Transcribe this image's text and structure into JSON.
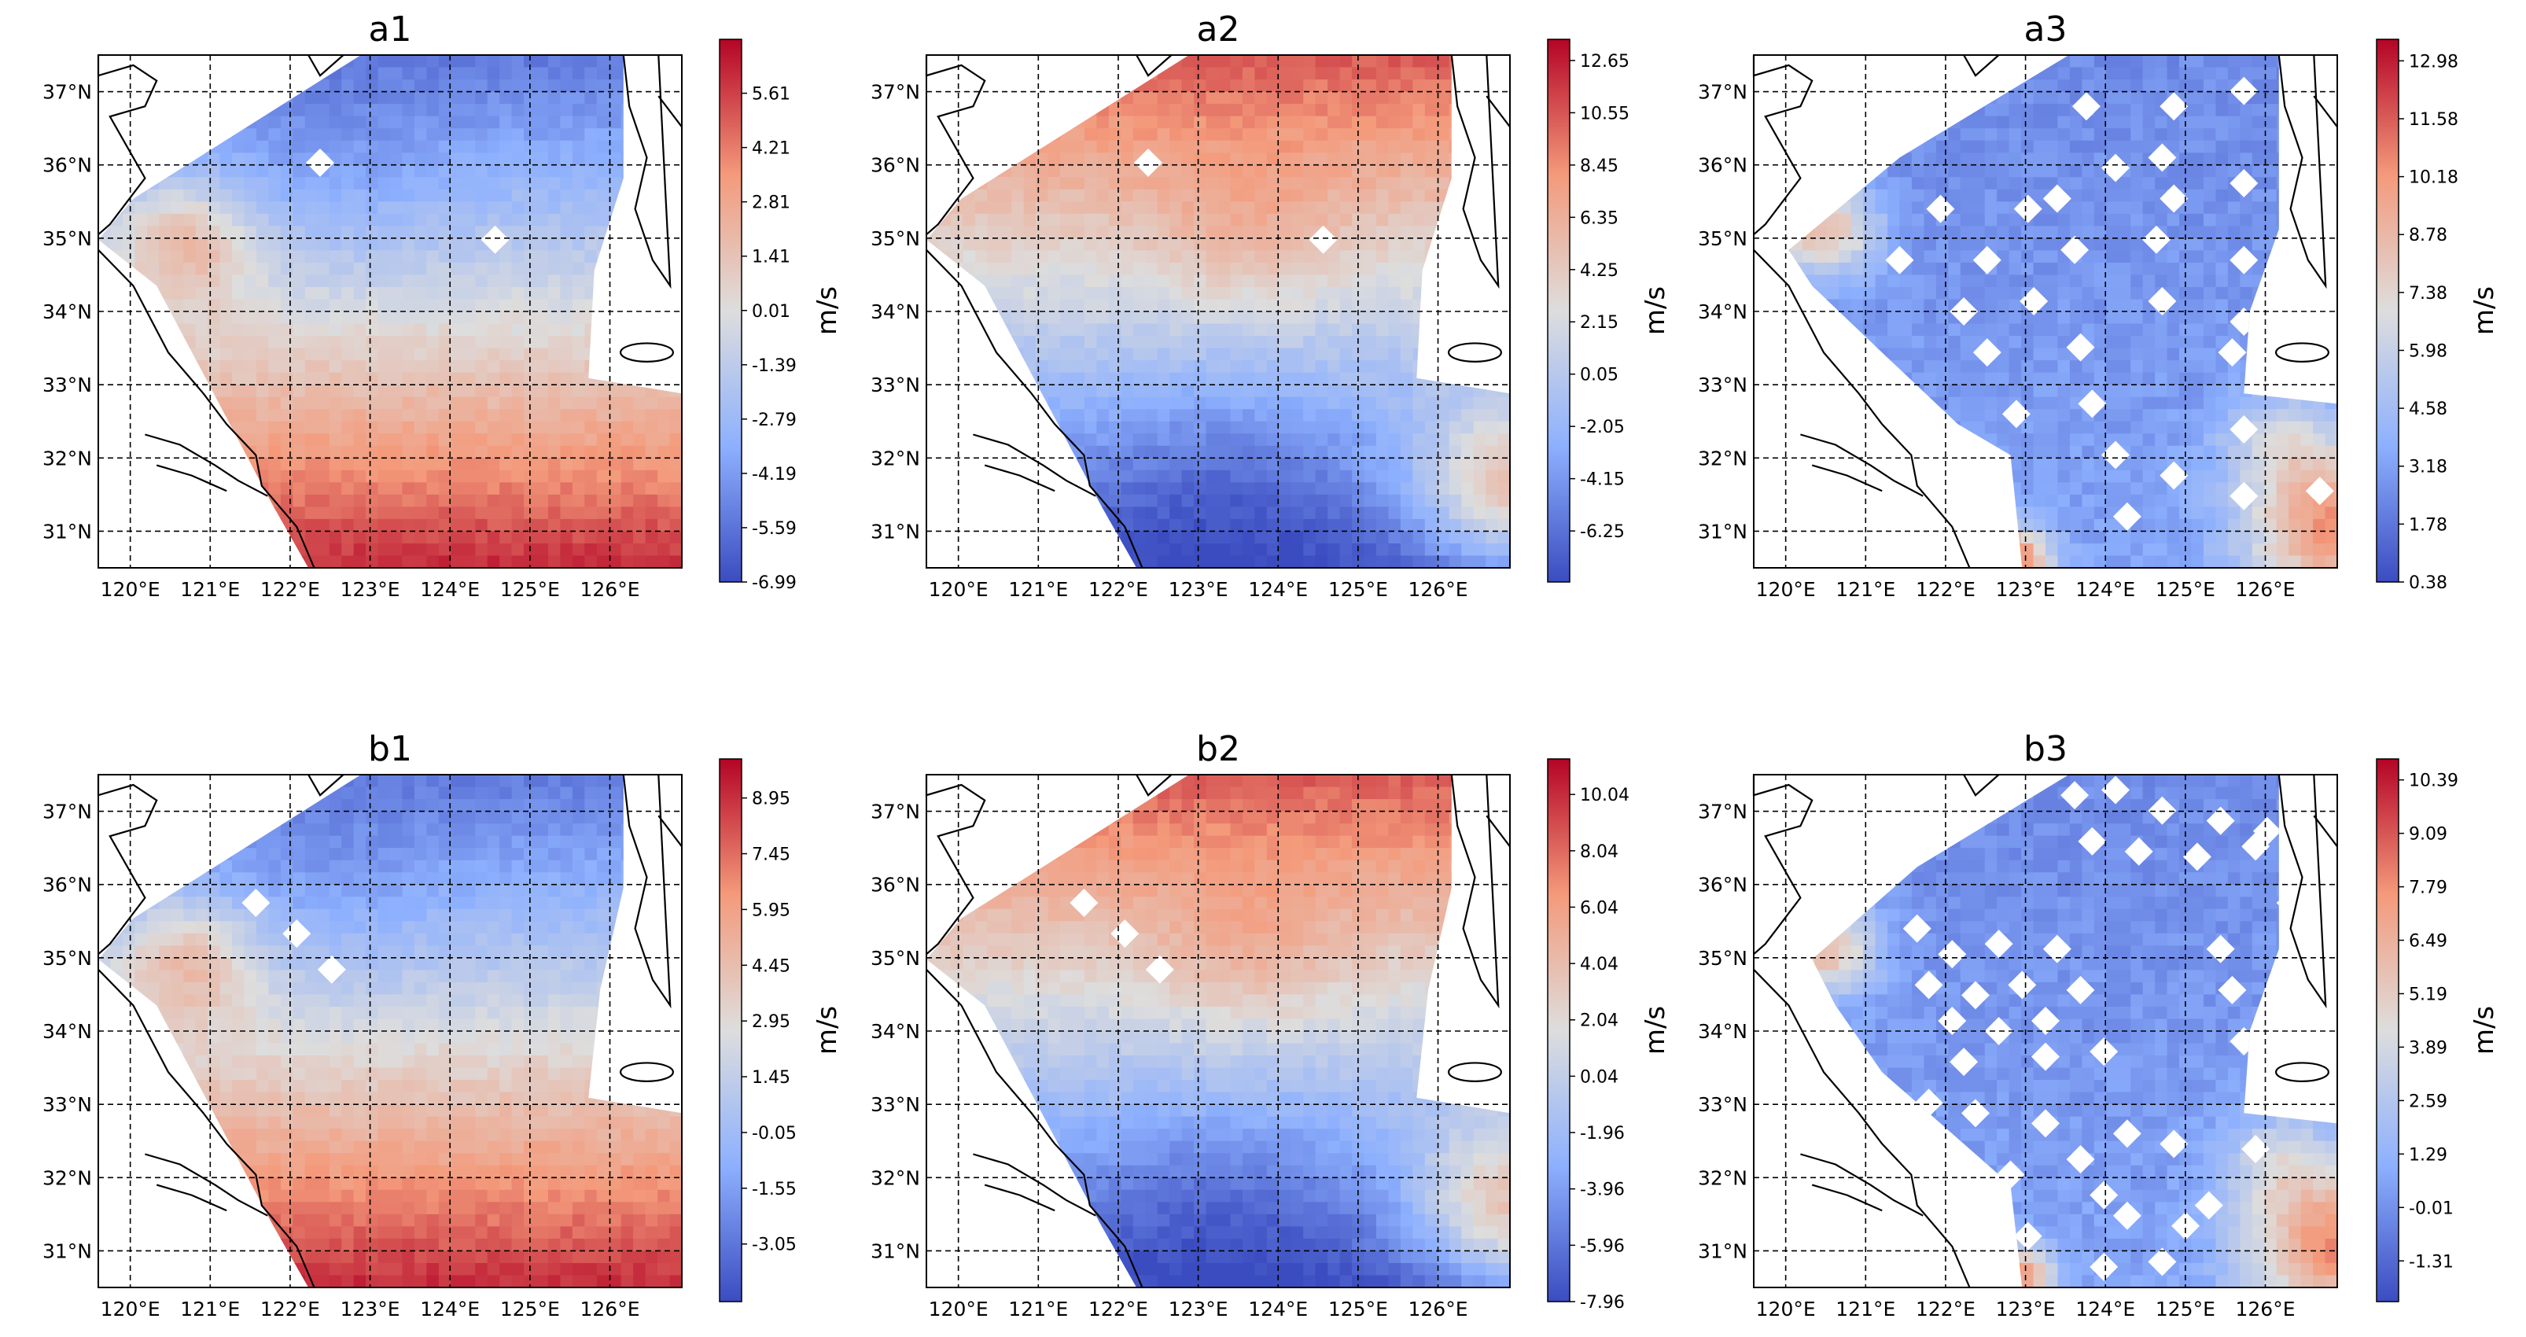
{
  "figure": {
    "note": "Six map panels of the Yellow Sea / East China Sea region showing wind-speed fields (m/s) with coolwarm colormap"
  },
  "colors": {
    "cold": "#3b4cc0",
    "mid": "#dddddd",
    "hot": "#b40426",
    "land": "#ffffff",
    "coast": "#000000"
  },
  "chart_data": [
    {
      "type": "heatmap",
      "id": "a1",
      "title": "a1",
      "xlabel": "",
      "ylabel": "",
      "x_ticks": [
        "120°E",
        "121°E",
        "122°E",
        "123°E",
        "124°E",
        "125°E",
        "126°E"
      ],
      "y_ticks": [
        "37°N",
        "36°N",
        "35°N",
        "34°N",
        "33°N",
        "32°N",
        "31°N"
      ],
      "xlim": [
        119.6,
        126.9
      ],
      "ylim": [
        30.5,
        37.5
      ],
      "colorbar": {
        "unit": "m/s",
        "ticks": [
          "5.61",
          "4.21",
          "2.81",
          "1.41",
          "0.01",
          "-1.39",
          "-2.79",
          "-4.19",
          "-5.59",
          "-6.99"
        ],
        "min": -6.99,
        "max": 7.0
      },
      "field_pattern": "north-negative-south-positive",
      "mask": "a"
    },
    {
      "type": "heatmap",
      "id": "a2",
      "title": "a2",
      "xlabel": "",
      "ylabel": "",
      "x_ticks": [
        "120°E",
        "121°E",
        "122°E",
        "123°E",
        "124°E",
        "125°E",
        "126°E"
      ],
      "y_ticks": [
        "37°N",
        "36°N",
        "35°N",
        "34°N",
        "33°N",
        "32°N",
        "31°N"
      ],
      "xlim": [
        119.6,
        126.9
      ],
      "ylim": [
        30.5,
        37.5
      ],
      "colorbar": {
        "unit": "m/s",
        "ticks": [
          "12.65",
          "10.55",
          "8.45",
          "6.35",
          "4.25",
          "2.15",
          "0.05",
          "-2.05",
          "-4.15",
          "-6.25"
        ],
        "min": -8.3,
        "max": 13.5
      },
      "field_pattern": "north-positive-south-negative",
      "mask": "a"
    },
    {
      "type": "heatmap",
      "id": "a3",
      "title": "a3",
      "xlabel": "",
      "ylabel": "",
      "x_ticks": [
        "120°E",
        "121°E",
        "122°E",
        "123°E",
        "124°E",
        "125°E",
        "126°E"
      ],
      "y_ticks": [
        "37°N",
        "36°N",
        "35°N",
        "34°N",
        "33°N",
        "32°N",
        "31°N"
      ],
      "xlim": [
        119.6,
        126.9
      ],
      "ylim": [
        30.5,
        37.5
      ],
      "colorbar": {
        "unit": "m/s",
        "ticks": [
          "12.98",
          "11.58",
          "10.18",
          "8.78",
          "7.38",
          "5.98",
          "4.58",
          "3.18",
          "1.78",
          "0.38"
        ],
        "min": 0.38,
        "max": 13.5
      },
      "field_pattern": "mostly-low-blue",
      "mask": "a3"
    },
    {
      "type": "heatmap",
      "id": "b1",
      "title": "b1",
      "xlabel": "",
      "ylabel": "",
      "x_ticks": [
        "120°E",
        "121°E",
        "122°E",
        "123°E",
        "124°E",
        "125°E",
        "126°E"
      ],
      "y_ticks": [
        "37°N",
        "36°N",
        "35°N",
        "34°N",
        "33°N",
        "32°N",
        "31°N"
      ],
      "xlim": [
        119.6,
        126.9
      ],
      "ylim": [
        30.5,
        37.5
      ],
      "colorbar": {
        "unit": "m/s",
        "ticks": [
          "8.95",
          "7.45",
          "5.95",
          "4.45",
          "2.95",
          "1.45",
          "-0.05",
          "-1.55",
          "-3.05"
        ],
        "min": -4.6,
        "max": 10.0
      },
      "field_pattern": "north-negative-south-positive",
      "mask": "b"
    },
    {
      "type": "heatmap",
      "id": "b2",
      "title": "b2",
      "xlabel": "",
      "ylabel": "",
      "x_ticks": [
        "120°E",
        "121°E",
        "122°E",
        "123°E",
        "124°E",
        "125°E",
        "126°E"
      ],
      "y_ticks": [
        "37°N",
        "36°N",
        "35°N",
        "34°N",
        "33°N",
        "32°N",
        "31°N"
      ],
      "xlim": [
        119.6,
        126.9
      ],
      "ylim": [
        30.5,
        37.5
      ],
      "colorbar": {
        "unit": "m/s",
        "ticks": [
          "10.04",
          "8.04",
          "6.04",
          "4.04",
          "2.04",
          "0.04",
          "-1.96",
          "-3.96",
          "-5.96",
          "-7.96"
        ],
        "min": -7.96,
        "max": 11.3
      },
      "field_pattern": "north-positive-south-negative",
      "mask": "b"
    },
    {
      "type": "heatmap",
      "id": "b3",
      "title": "b3",
      "xlabel": "",
      "ylabel": "",
      "x_ticks": [
        "120°E",
        "121°E",
        "122°E",
        "123°E",
        "124°E",
        "125°E",
        "126°E"
      ],
      "y_ticks": [
        "37°N",
        "36°N",
        "35°N",
        "34°N",
        "33°N",
        "32°N",
        "31°N"
      ],
      "xlim": [
        119.6,
        126.9
      ],
      "ylim": [
        30.5,
        37.5
      ],
      "colorbar": {
        "unit": "m/s",
        "ticks": [
          "10.39",
          "9.09",
          "7.79",
          "6.49",
          "5.19",
          "3.89",
          "2.59",
          "1.29",
          "-0.01",
          "-1.31"
        ],
        "min": -2.3,
        "max": 10.9
      },
      "field_pattern": "mostly-low-blue",
      "mask": "b3"
    }
  ]
}
